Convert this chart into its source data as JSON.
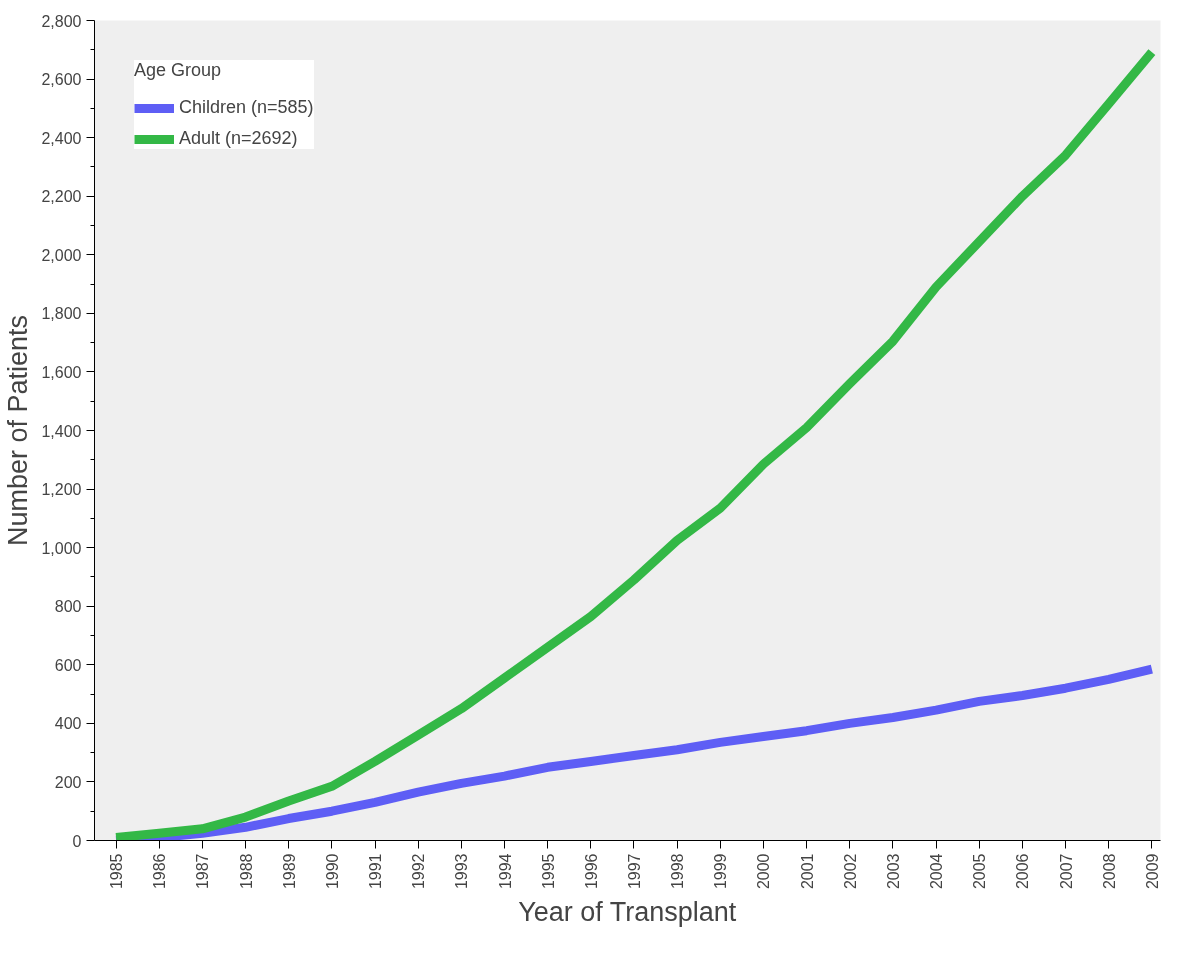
{
  "chart_data": {
    "type": "line",
    "xlabel": "Year of Transplant",
    "ylabel": "Number of Patients",
    "legend_title": "Age Group",
    "x": [
      1985,
      1986,
      1987,
      1988,
      1989,
      1990,
      1991,
      1992,
      1993,
      1994,
      1995,
      1996,
      1997,
      1998,
      1999,
      2000,
      2001,
      2002,
      2003,
      2004,
      2005,
      2006,
      2007,
      2008,
      2009
    ],
    "series": [
      {
        "name": "Children (n=585)",
        "color": "#5e5ef5",
        "values": [
          0,
          10,
          25,
          45,
          75,
          100,
          130,
          165,
          195,
          220,
          250,
          270,
          290,
          310,
          335,
          355,
          375,
          400,
          420,
          445,
          475,
          495,
          520,
          550,
          585
        ]
      },
      {
        "name": "Adult (n=2692)",
        "color": "#33b846",
        "values": [
          10,
          25,
          40,
          80,
          135,
          185,
          270,
          360,
          450,
          555,
          660,
          765,
          890,
          1025,
          1135,
          1285,
          1410,
          1560,
          1705,
          1890,
          2045,
          2200,
          2340,
          2515,
          2692
        ]
      }
    ],
    "xlim": [
      1984.5,
      2009.2
    ],
    "xticks": [
      1985,
      1986,
      1987,
      1988,
      1989,
      1990,
      1991,
      1992,
      1993,
      1994,
      1995,
      1996,
      1997,
      1998,
      1999,
      2000,
      2001,
      2002,
      2003,
      2004,
      2005,
      2006,
      2007,
      2008,
      2009
    ],
    "ylim": [
      0,
      2800
    ],
    "yticks": [
      {
        "value": 0,
        "label": "0"
      },
      {
        "value": 200,
        "label": "200"
      },
      {
        "value": 400,
        "label": "400"
      },
      {
        "value": 600,
        "label": "600"
      },
      {
        "value": 800,
        "label": "800"
      },
      {
        "value": 1000,
        "label": "1,000"
      },
      {
        "value": 1200,
        "label": "1,200"
      },
      {
        "value": 1400,
        "label": "1,400"
      },
      {
        "value": 1600,
        "label": "1,600"
      },
      {
        "value": 1800,
        "label": "1,800"
      },
      {
        "value": 2000,
        "label": "2,000"
      },
      {
        "value": 2200,
        "label": "2,200"
      },
      {
        "value": 2400,
        "label": "2,400"
      },
      {
        "value": 2600,
        "label": "2,600"
      },
      {
        "value": 2800,
        "label": "2,800"
      }
    ],
    "grid": false,
    "legend": "top left",
    "line_style": "solid",
    "marker": "none"
  }
}
